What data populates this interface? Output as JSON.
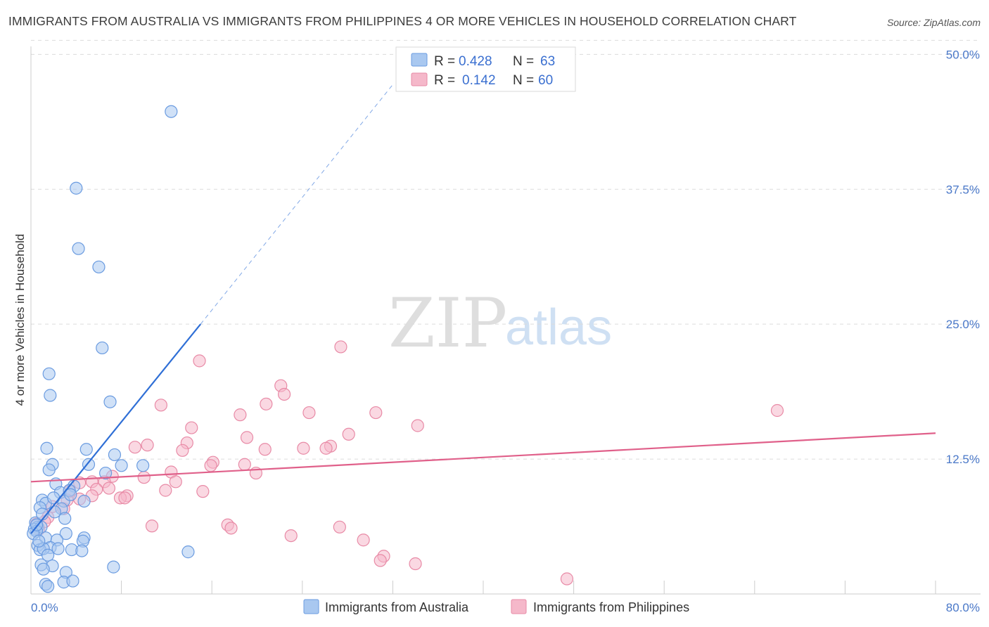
{
  "title": "IMMIGRANTS FROM AUSTRALIA VS IMMIGRANTS FROM PHILIPPINES 4 OR MORE VEHICLES IN HOUSEHOLD CORRELATION CHART",
  "source": "Source: ZipAtlas.com",
  "watermark": {
    "zip": "ZIP",
    "atlas": "atlas"
  },
  "legend_top": [
    {
      "r_label": "R =",
      "r_value": "0.428",
      "n_label": "N =",
      "n_value": "63"
    },
    {
      "r_label": "R =",
      "r_value": "0.142",
      "n_label": "N =",
      "n_value": "60"
    }
  ],
  "colors": {
    "blue_fill": "#a9c8f0",
    "blue_stroke": "#6a9be0",
    "blue_line": "#2f6fd6",
    "pink_fill": "#f5b8ca",
    "pink_stroke": "#e88aa6",
    "pink_line": "#e0608a",
    "grid": "#dcdcdc",
    "axis": "#cccccc"
  },
  "chart_data": {
    "type": "scatter",
    "title": "IMMIGRANTS FROM AUSTRALIA VS IMMIGRANTS FROM PHILIPPINES 4 OR MORE VEHICLES IN HOUSEHOLD CORRELATION CHART",
    "xlabel": "",
    "ylabel": "4 or more Vehicles in Household",
    "xlim": [
      0,
      80
    ],
    "ylim": [
      0,
      51
    ],
    "x_tick_labels": [
      "0.0%",
      "80.0%"
    ],
    "y_ticks": [
      12.5,
      25.0,
      37.5,
      50.0
    ],
    "y_tick_labels": [
      "12.5%",
      "25.0%",
      "37.5%",
      "50.0%"
    ],
    "grid": true,
    "series": [
      {
        "name": "Immigrants from Australia",
        "R": 0.428,
        "N": 63,
        "trend": {
          "x_start": 0.0,
          "y_start": 5.6,
          "x_solid_end": 15.0,
          "y_solid_end": 25.0,
          "x_dash_end": 32.0,
          "y_dash_end": 47.2
        },
        "points": [
          [
            12.4,
            44.7
          ],
          [
            4.0,
            37.6
          ],
          [
            4.2,
            32.0
          ],
          [
            6.0,
            30.3
          ],
          [
            6.3,
            22.8
          ],
          [
            1.6,
            20.4
          ],
          [
            1.7,
            18.4
          ],
          [
            7.0,
            17.8
          ],
          [
            1.4,
            13.5
          ],
          [
            4.9,
            13.4
          ],
          [
            7.4,
            12.9
          ],
          [
            1.9,
            12.0
          ],
          [
            5.1,
            12.0
          ],
          [
            8.0,
            11.9
          ],
          [
            9.9,
            11.9
          ],
          [
            1.6,
            11.5
          ],
          [
            6.6,
            11.2
          ],
          [
            2.2,
            10.2
          ],
          [
            3.8,
            10.0
          ],
          [
            2.6,
            9.4
          ],
          [
            3.4,
            9.6
          ],
          [
            1.0,
            8.7
          ],
          [
            4.7,
            8.6
          ],
          [
            2.9,
            8.6
          ],
          [
            1.3,
            8.4
          ],
          [
            0.8,
            8.0
          ],
          [
            2.7,
            7.9
          ],
          [
            2.1,
            7.6
          ],
          [
            3.0,
            7.0
          ],
          [
            0.4,
            6.6
          ],
          [
            0.6,
            6.2
          ],
          [
            0.3,
            6.0
          ],
          [
            0.9,
            6.2
          ],
          [
            0.5,
            5.8
          ],
          [
            0.2,
            5.6
          ],
          [
            3.1,
            5.6
          ],
          [
            4.7,
            5.2
          ],
          [
            1.3,
            5.2
          ],
          [
            2.3,
            5.0
          ],
          [
            4.6,
            4.9
          ],
          [
            0.6,
            4.5
          ],
          [
            1.7,
            4.3
          ],
          [
            2.4,
            4.2
          ],
          [
            0.8,
            4.1
          ],
          [
            1.1,
            4.2
          ],
          [
            3.6,
            4.1
          ],
          [
            4.5,
            4.0
          ],
          [
            13.9,
            3.9
          ],
          [
            1.5,
            3.6
          ],
          [
            0.9,
            2.7
          ],
          [
            1.9,
            2.6
          ],
          [
            1.1,
            2.3
          ],
          [
            7.3,
            2.5
          ],
          [
            3.1,
            2.0
          ],
          [
            2.9,
            1.1
          ],
          [
            3.7,
            1.2
          ],
          [
            1.3,
            0.9
          ],
          [
            1.5,
            0.7
          ],
          [
            0.5,
            6.4
          ],
          [
            0.7,
            4.9
          ],
          [
            2.0,
            8.9
          ],
          [
            1.0,
            7.4
          ],
          [
            3.5,
            9.2
          ]
        ]
      },
      {
        "name": "Immigrants from Philippines",
        "R": 0.142,
        "N": 60,
        "trend": {
          "x_start": 0.0,
          "y_start": 10.4,
          "x_end": 80.0,
          "y_end": 14.9
        },
        "points": [
          [
            27.4,
            22.9
          ],
          [
            14.9,
            21.6
          ],
          [
            22.1,
            19.3
          ],
          [
            22.4,
            18.5
          ],
          [
            11.5,
            17.5
          ],
          [
            20.8,
            17.6
          ],
          [
            18.5,
            16.6
          ],
          [
            24.6,
            16.8
          ],
          [
            30.5,
            16.8
          ],
          [
            34.2,
            15.6
          ],
          [
            66.0,
            17.0
          ],
          [
            14.2,
            15.4
          ],
          [
            19.1,
            14.5
          ],
          [
            28.1,
            14.8
          ],
          [
            13.8,
            14.0
          ],
          [
            10.3,
            13.8
          ],
          [
            9.2,
            13.6
          ],
          [
            13.4,
            13.3
          ],
          [
            20.7,
            13.4
          ],
          [
            24.1,
            13.5
          ],
          [
            26.5,
            13.7
          ],
          [
            26.1,
            13.5
          ],
          [
            18.9,
            12.0
          ],
          [
            16.1,
            12.2
          ],
          [
            15.9,
            11.9
          ],
          [
            12.4,
            11.3
          ],
          [
            19.9,
            11.2
          ],
          [
            7.2,
            10.9
          ],
          [
            10.0,
            10.8
          ],
          [
            5.4,
            10.4
          ],
          [
            6.5,
            10.4
          ],
          [
            12.8,
            10.4
          ],
          [
            4.3,
            10.3
          ],
          [
            6.9,
            9.8
          ],
          [
            5.8,
            9.7
          ],
          [
            11.9,
            9.6
          ],
          [
            15.2,
            9.5
          ],
          [
            3.4,
            9.5
          ],
          [
            8.5,
            9.1
          ],
          [
            7.9,
            8.9
          ],
          [
            8.3,
            8.9
          ],
          [
            4.3,
            8.8
          ],
          [
            5.4,
            9.1
          ],
          [
            2.9,
            7.9
          ],
          [
            3.2,
            8.7
          ],
          [
            1.9,
            8.1
          ],
          [
            1.5,
            7.1
          ],
          [
            10.7,
            6.3
          ],
          [
            17.4,
            6.4
          ],
          [
            17.7,
            6.1
          ],
          [
            27.3,
            6.2
          ],
          [
            0.7,
            6.0
          ],
          [
            0.5,
            6.5
          ],
          [
            23.0,
            5.4
          ],
          [
            29.4,
            5.0
          ],
          [
            31.2,
            3.5
          ],
          [
            30.9,
            3.1
          ],
          [
            34.0,
            2.8
          ],
          [
            47.4,
            1.4
          ],
          [
            1.2,
            6.7
          ]
        ]
      }
    ]
  },
  "bottom_legend": [
    "Immigrants from Australia",
    "Immigrants from Philippines"
  ]
}
